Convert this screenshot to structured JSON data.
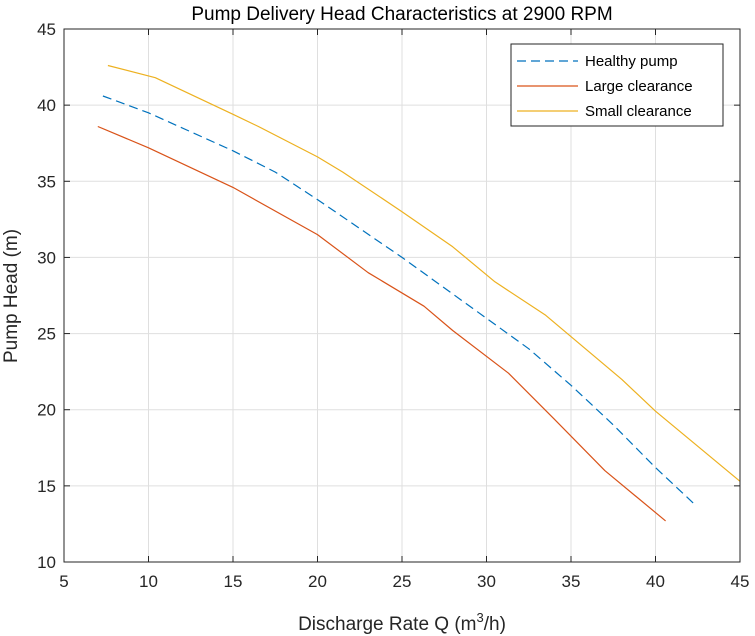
{
  "chart_data": {
    "type": "line",
    "title": "Pump Delivery Head Characteristics at 2900 RPM",
    "xlabel": {
      "prefix": "Discharge Rate Q (m",
      "superscript": "3",
      "suffix": "/h)"
    },
    "ylabel": "Pump Head (m)",
    "xlim": [
      5,
      45
    ],
    "ylim": [
      10,
      45
    ],
    "xticks": [
      5,
      10,
      15,
      20,
      25,
      30,
      35,
      40,
      45
    ],
    "yticks": [
      10,
      15,
      20,
      25,
      30,
      35,
      40,
      45
    ],
    "grid": true,
    "legend_position": "top-right",
    "series": [
      {
        "name": "Healthy pump",
        "color": "#0072BD",
        "style": "dashed",
        "points": [
          [
            7.3,
            40.6
          ],
          [
            10,
            39.5
          ],
          [
            15,
            37.0
          ],
          [
            17.5,
            35.6
          ],
          [
            20,
            33.8
          ],
          [
            25,
            30.0
          ],
          [
            30,
            26.0
          ],
          [
            32.5,
            24.0
          ],
          [
            35,
            21.6
          ],
          [
            37.5,
            19.0
          ],
          [
            40,
            16.2
          ],
          [
            42.3,
            13.8
          ]
        ]
      },
      {
        "name": "Large clearance",
        "color": "#D95319",
        "style": "solid",
        "points": [
          [
            7,
            38.6
          ],
          [
            10,
            37.2
          ],
          [
            15,
            34.6
          ],
          [
            20,
            31.5
          ],
          [
            23,
            29.0
          ],
          [
            26.3,
            26.8
          ],
          [
            28,
            25.2
          ],
          [
            31.3,
            22.4
          ],
          [
            34,
            19.4
          ],
          [
            37,
            16.0
          ],
          [
            40.6,
            12.7
          ]
        ]
      },
      {
        "name": "Small clearance",
        "color": "#EDB120",
        "style": "solid",
        "points": [
          [
            7.6,
            42.6
          ],
          [
            10.4,
            41.8
          ],
          [
            15,
            39.4
          ],
          [
            16.5,
            38.6
          ],
          [
            20,
            36.6
          ],
          [
            21.5,
            35.6
          ],
          [
            25,
            33.0
          ],
          [
            28,
            30.7
          ],
          [
            30.5,
            28.4
          ],
          [
            33.5,
            26.2
          ],
          [
            38,
            22.0
          ],
          [
            40,
            19.9
          ],
          [
            45,
            15.3
          ]
        ]
      }
    ]
  }
}
